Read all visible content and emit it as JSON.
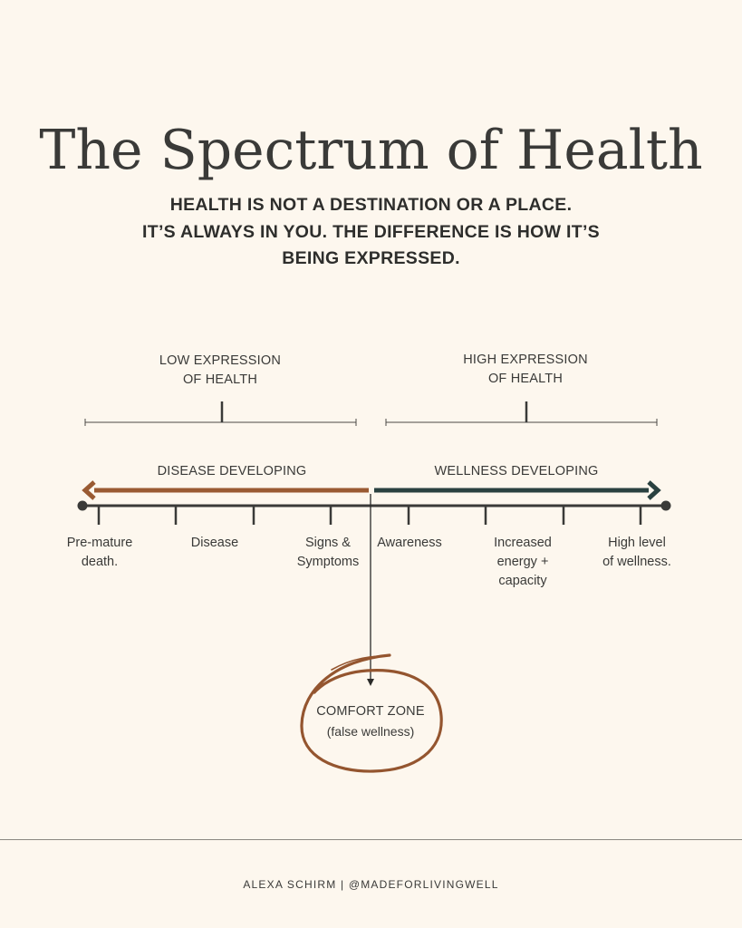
{
  "title": "The Spectrum of Health",
  "subtitle_lines": [
    "HEALTH IS NOT A DESTINATION OR A PLACE.",
    "IT’S ALWAYS IN YOU. THE DIFFERENCE IS HOW IT’S",
    "BEING EXPRESSED."
  ],
  "expression": {
    "low": [
      "LOW EXPRESSION",
      "OF HEALTH"
    ],
    "high": [
      "HIGH EXPRESSION",
      "OF HEALTH"
    ]
  },
  "directions": {
    "left": "DISEASE DEVELOPING",
    "right": "WELLNESS DEVELOPING"
  },
  "stages": [
    {
      "lines": [
        "Pre-mature",
        "death."
      ]
    },
    {
      "lines": [
        "Disease"
      ]
    },
    {
      "lines": [
        "Signs &",
        "Symptoms"
      ]
    },
    {
      "lines": [
        "Awareness"
      ]
    },
    {
      "lines": [
        "Increased",
        "energy +",
        "capacity"
      ]
    },
    {
      "lines": [
        "High level",
        "of wellness."
      ]
    }
  ],
  "comfort_zone": {
    "title": "COMFORT ZONE",
    "note": "(false wellness)"
  },
  "footer": "ALEXA SCHIRM | @MADEFORLIVINGWELL",
  "colors": {
    "background": "#fdf7ee",
    "text": "#3a3a38",
    "disease_arrow": "#9a5a32",
    "wellness_arrow": "#2a4140",
    "circle": "#94552f"
  }
}
